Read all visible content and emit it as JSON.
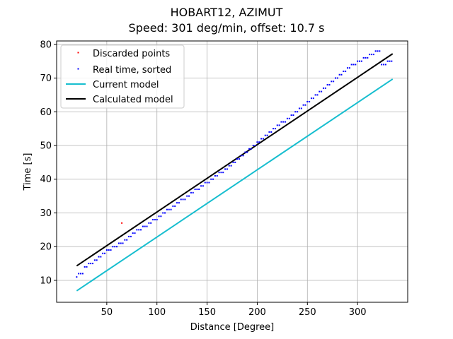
{
  "chart_data": {
    "type": "scatter",
    "title_line1": "HOBART12, AZIMUT",
    "title_line2": "Speed: 301 deg/min, offset: 10.7 s",
    "xlabel": "Distance [Degree]",
    "ylabel": "Time [s]",
    "xlim": [
      0.0,
      350.0
    ],
    "ylim": [
      3.5,
      81.0
    ],
    "xticks": [
      50,
      100,
      150,
      200,
      250,
      300
    ],
    "yticks": [
      10,
      20,
      30,
      40,
      50,
      60,
      70,
      80
    ],
    "grid": true,
    "legend_position": "upper-left",
    "colors": {
      "discarded": "#ff0000",
      "realtime": "#0000ff",
      "current": "#17becf",
      "calculated": "#000000"
    },
    "series": [
      {
        "name": "Discarded points",
        "kind": "points",
        "points": [
          [
            65,
            27
          ]
        ]
      },
      {
        "name": "Real time, sorted",
        "kind": "points",
        "points": [
          [
            20,
            11
          ],
          [
            22,
            12
          ],
          [
            24,
            12
          ],
          [
            26,
            12
          ],
          [
            28,
            14
          ],
          [
            30,
            14
          ],
          [
            32,
            15
          ],
          [
            34,
            15
          ],
          [
            36,
            15
          ],
          [
            38,
            16
          ],
          [
            40,
            16
          ],
          [
            42,
            17
          ],
          [
            44,
            17
          ],
          [
            46,
            18
          ],
          [
            48,
            18
          ],
          [
            50,
            19
          ],
          [
            52,
            19
          ],
          [
            54,
            19
          ],
          [
            56,
            20
          ],
          [
            58,
            20
          ],
          [
            60,
            20
          ],
          [
            62,
            21
          ],
          [
            64,
            21
          ],
          [
            66,
            21
          ],
          [
            68,
            22
          ],
          [
            70,
            22
          ],
          [
            72,
            23
          ],
          [
            74,
            23
          ],
          [
            76,
            24
          ],
          [
            78,
            24
          ],
          [
            80,
            25
          ],
          [
            82,
            25
          ],
          [
            84,
            25
          ],
          [
            86,
            26
          ],
          [
            88,
            26
          ],
          [
            90,
            26
          ],
          [
            92,
            27
          ],
          [
            94,
            27
          ],
          [
            96,
            28
          ],
          [
            98,
            28
          ],
          [
            100,
            28
          ],
          [
            102,
            29
          ],
          [
            104,
            29
          ],
          [
            106,
            30
          ],
          [
            108,
            30
          ],
          [
            110,
            31
          ],
          [
            112,
            31
          ],
          [
            114,
            31
          ],
          [
            116,
            32
          ],
          [
            118,
            32
          ],
          [
            120,
            33
          ],
          [
            122,
            33
          ],
          [
            124,
            34
          ],
          [
            126,
            34
          ],
          [
            128,
            34
          ],
          [
            130,
            35
          ],
          [
            132,
            35
          ],
          [
            134,
            36
          ],
          [
            136,
            36
          ],
          [
            138,
            37
          ],
          [
            140,
            37
          ],
          [
            142,
            37
          ],
          [
            144,
            38
          ],
          [
            146,
            38
          ],
          [
            148,
            39
          ],
          [
            150,
            39
          ],
          [
            152,
            39
          ],
          [
            154,
            40
          ],
          [
            156,
            40
          ],
          [
            158,
            41
          ],
          [
            160,
            41
          ],
          [
            162,
            42
          ],
          [
            164,
            42
          ],
          [
            166,
            42
          ],
          [
            168,
            43
          ],
          [
            170,
            43
          ],
          [
            172,
            44
          ],
          [
            174,
            44
          ],
          [
            176,
            45
          ],
          [
            178,
            45
          ],
          [
            180,
            46
          ],
          [
            182,
            46
          ],
          [
            184,
            47
          ],
          [
            186,
            47
          ],
          [
            188,
            48
          ],
          [
            190,
            48
          ],
          [
            192,
            49
          ],
          [
            194,
            49
          ],
          [
            196,
            50
          ],
          [
            198,
            50
          ],
          [
            200,
            51
          ],
          [
            202,
            51
          ],
          [
            204,
            52
          ],
          [
            206,
            52
          ],
          [
            208,
            53
          ],
          [
            210,
            53
          ],
          [
            212,
            54
          ],
          [
            214,
            54
          ],
          [
            216,
            55
          ],
          [
            218,
            55
          ],
          [
            220,
            56
          ],
          [
            222,
            56
          ],
          [
            224,
            57
          ],
          [
            226,
            57
          ],
          [
            228,
            57
          ],
          [
            230,
            58
          ],
          [
            232,
            58
          ],
          [
            234,
            59
          ],
          [
            236,
            59
          ],
          [
            238,
            60
          ],
          [
            240,
            60
          ],
          [
            242,
            61
          ],
          [
            244,
            61
          ],
          [
            246,
            62
          ],
          [
            248,
            62
          ],
          [
            250,
            63
          ],
          [
            252,
            63
          ],
          [
            254,
            64
          ],
          [
            256,
            64
          ],
          [
            258,
            65
          ],
          [
            260,
            65
          ],
          [
            262,
            66
          ],
          [
            264,
            66
          ],
          [
            266,
            67
          ],
          [
            268,
            67
          ],
          [
            270,
            68
          ],
          [
            272,
            68
          ],
          [
            274,
            69
          ],
          [
            276,
            69
          ],
          [
            278,
            70
          ],
          [
            280,
            70
          ],
          [
            282,
            71
          ],
          [
            284,
            71
          ],
          [
            286,
            72
          ],
          [
            288,
            72
          ],
          [
            290,
            73
          ],
          [
            292,
            73
          ],
          [
            294,
            74
          ],
          [
            296,
            74
          ],
          [
            298,
            74
          ],
          [
            300,
            75
          ],
          [
            302,
            75
          ],
          [
            304,
            75
          ],
          [
            306,
            76
          ],
          [
            308,
            76
          ],
          [
            310,
            76
          ],
          [
            312,
            77
          ],
          [
            314,
            77
          ],
          [
            316,
            77
          ],
          [
            318,
            78
          ],
          [
            320,
            78
          ],
          [
            322,
            78
          ],
          [
            324,
            74
          ],
          [
            326,
            74
          ],
          [
            328,
            74
          ],
          [
            330,
            75
          ],
          [
            332,
            75
          ],
          [
            334,
            75
          ]
        ]
      },
      {
        "name": "Current model",
        "kind": "line",
        "x": [
          20,
          335
        ],
        "y": [
          6.9,
          69.7
        ]
      },
      {
        "name": "Calculated model",
        "kind": "line",
        "x": [
          20,
          335
        ],
        "y": [
          14.3,
          77.2
        ]
      }
    ]
  }
}
